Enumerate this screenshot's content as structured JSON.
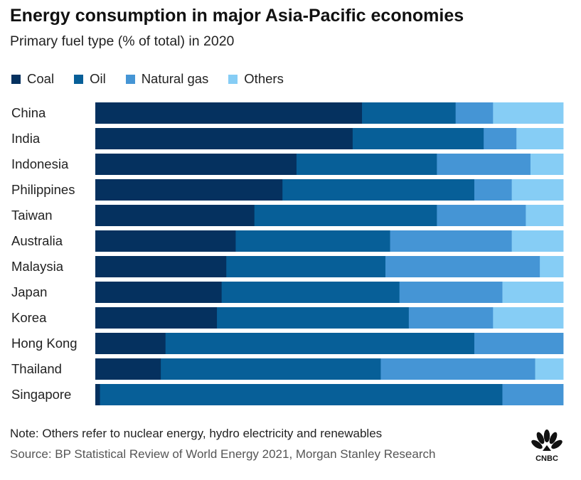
{
  "header": {
    "title": "Energy consumption in major Asia-Pacific economies",
    "subtitle": "Primary fuel type (% of total) in 2020"
  },
  "footer": {
    "note": "Note: Others refer to nuclear energy, hydro electricity and renewables",
    "source": "Source: BP Statistical Review of World Energy 2021, Morgan Stanley Research"
  },
  "logo": {
    "text": "CNBC",
    "icon": "cnbc-peacock-logo"
  },
  "colors": {
    "coal": "#05315f",
    "oil": "#075f98",
    "natural_gas": "#4595d5",
    "others": "#86cdf5"
  },
  "chart_data": {
    "type": "bar",
    "orientation": "horizontal",
    "stacked": true,
    "title": "Energy consumption in major Asia-Pacific economies",
    "subtitle": "Primary fuel type (% of total) in 2020",
    "xlim": [
      0,
      100
    ],
    "grid": false,
    "legend_position": "top-left",
    "categories": [
      "China",
      "India",
      "Indonesia",
      "Philippines",
      "Taiwan",
      "Australia",
      "Malaysia",
      "Japan",
      "Korea",
      "Hong Kong",
      "Thailand",
      "Singapore"
    ],
    "series": [
      {
        "name": "Coal",
        "color": "#05315f",
        "values": [
          57,
          55,
          43,
          40,
          34,
          30,
          28,
          27,
          26,
          15,
          14,
          1
        ]
      },
      {
        "name": "Oil",
        "color": "#075f98",
        "values": [
          20,
          28,
          30,
          41,
          39,
          33,
          34,
          38,
          41,
          66,
          47,
          86
        ]
      },
      {
        "name": "Natural gas",
        "color": "#4595d5",
        "values": [
          8,
          7,
          20,
          8,
          19,
          26,
          33,
          22,
          18,
          19,
          33,
          13
        ]
      },
      {
        "name": "Others",
        "color": "#86cdf5",
        "values": [
          15,
          10,
          7,
          11,
          8,
          11,
          5,
          13,
          15,
          0,
          6,
          0
        ]
      }
    ]
  }
}
